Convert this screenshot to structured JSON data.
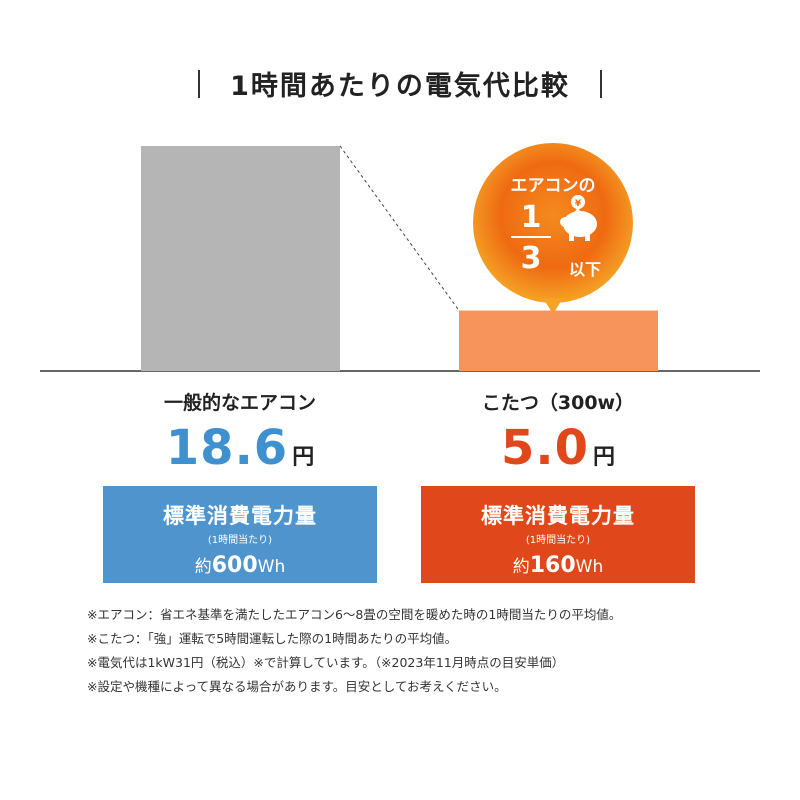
{
  "title": "1時間あたりの電気代比較",
  "colors": {
    "aircon_bar": "#b5b5b5",
    "kotatsu_bar": "#f7945c",
    "aircon_box": "#4f94cc",
    "kotatsu_box": "#e0471a",
    "aircon_price": "#3f90cf",
    "kotatsu_price": "#e0471a"
  },
  "chart_data": {
    "type": "bar",
    "categories": [
      "一般的なエアコン",
      "こたつ（300w）"
    ],
    "values": [
      18.6,
      5.0
    ],
    "unit": "円"
  },
  "items": [
    {
      "label": "一般的なエアコン",
      "price": "18.6",
      "unit": "円",
      "box_title": "標準消費電力量",
      "box_sub": "(1時間当たり)",
      "box_prefix": "約",
      "box_value": "600",
      "box_unit": "Wh"
    },
    {
      "label": "こたつ（300w）",
      "price": "5.0",
      "unit": "円",
      "box_title": "標準消費電力量",
      "box_sub": "(1時間当たり)",
      "box_prefix": "約",
      "box_value": "160",
      "box_unit": "Wh"
    }
  ],
  "bubble": {
    "line1": "エアコンの",
    "numerator": "1",
    "denominator": "3",
    "suffix": "以下",
    "icon": "piggy-bank-icon"
  },
  "notes": [
    "※エアコン：省エネ基準を満たしたエアコン6～8畳の空間を暖めた時の1時間当たりの平均値。",
    "※こたつ：「強」運転で5時間運転した際の1時間あたりの平均値。",
    "※電気代は1kW31円（税込）※で計算しています。（※2023年11月時点の目安単価）",
    "※設定や機種によって異なる場合があります。目安としてお考えください。"
  ]
}
